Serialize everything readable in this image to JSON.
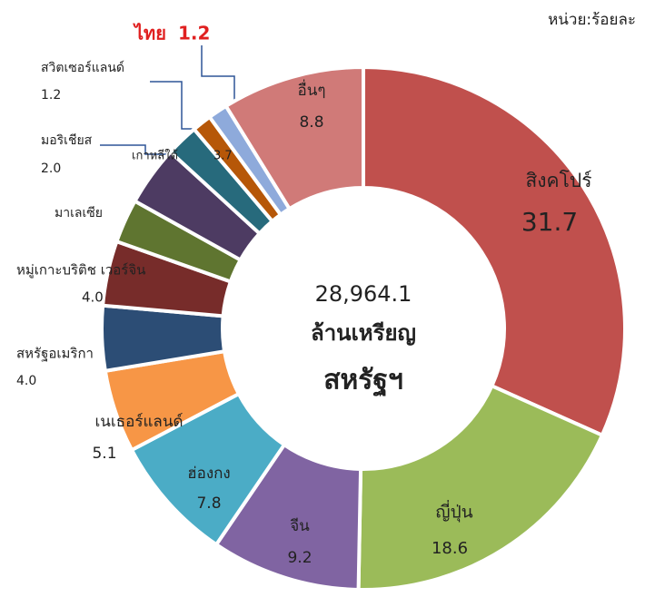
{
  "chart_data": {
    "type": "donut",
    "unit": "หน่วย:ร้อยละ",
    "center_text": [
      "28,964.1",
      "ล้านเหรียญ",
      "สหรัฐฯ"
    ],
    "categories": [
      "สิงคโปร์",
      "ญี่ปุ่น",
      "จีน",
      "ฮ่องกง",
      "เนเธอร์แลนด์",
      "สหรัฐอเมริกา",
      "หมู่เกาะบริติช เวอร์จิน",
      "มาเลเซีย",
      "เกาหลีใต้",
      "มอริเชียส",
      "สวิตเซอร์แลนด์",
      "ไทย",
      "อื่นๆ"
    ],
    "values": [
      31.7,
      18.6,
      9.2,
      7.8,
      5.1,
      4.0,
      4.0,
      2.7,
      3.7,
      2.0,
      1.2,
      1.2,
      8.8
    ],
    "value_labels": [
      "31.7",
      "18.6",
      "9.2",
      "7.8",
      "5.1",
      "4.0",
      "4.0",
      null,
      "3.7",
      "2.0",
      "1.2",
      "1.2",
      "8.8"
    ],
    "colors": [
      "#c0504d",
      "#9bbb59",
      "#8064a2",
      "#4bacc6",
      "#f79646",
      "#2c4d75",
      "#772c2a",
      "#5f7530",
      "#4d3b62",
      "#276a7c",
      "#b65708",
      "#8eaadb",
      "#d07a78"
    ],
    "highlight": "ไทย"
  }
}
